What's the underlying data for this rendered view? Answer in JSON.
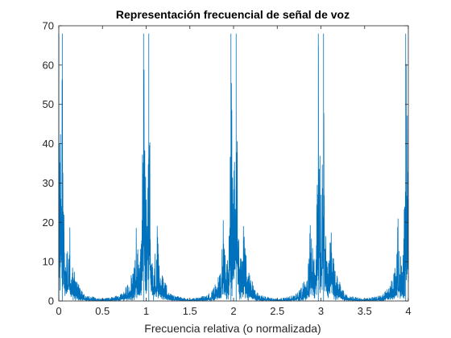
{
  "chart_data": {
    "type": "line",
    "title": "Representación frecuencial de señal de voz",
    "xlabel": "Frecuencia relativa (o normalizada)",
    "ylabel": "",
    "xlim": [
      0,
      4
    ],
    "ylim": [
      0,
      70
    ],
    "xticks": [
      0,
      0.5,
      1,
      1.5,
      2,
      2.5,
      3,
      3.5,
      4
    ],
    "xtick_labels": [
      "0",
      "0.5",
      "1",
      "1.5",
      "2",
      "2.5",
      "3",
      "3.5",
      "4"
    ],
    "yticks": [
      0,
      10,
      20,
      30,
      40,
      50,
      60,
      70
    ],
    "ytick_labels": [
      "0",
      "10",
      "20",
      "30",
      "40",
      "50",
      "60",
      "70"
    ],
    "grid": false,
    "series": [
      {
        "color": "#0072BD",
        "description_points": [
          [
            0.0,
            68
          ],
          [
            0.01,
            26
          ],
          [
            0.02,
            48
          ],
          [
            0.04,
            68
          ],
          [
            0.06,
            24
          ],
          [
            0.08,
            12
          ],
          [
            0.1,
            14
          ],
          [
            0.12,
            22
          ],
          [
            0.15,
            10
          ],
          [
            0.2,
            6
          ],
          [
            0.25,
            3
          ],
          [
            0.3,
            1.5
          ],
          [
            0.5,
            0.5
          ],
          [
            0.7,
            1.5
          ],
          [
            0.78,
            4
          ],
          [
            0.82,
            6
          ],
          [
            0.86,
            10
          ],
          [
            0.88,
            22
          ],
          [
            0.9,
            14
          ],
          [
            0.93,
            10
          ],
          [
            0.95,
            26
          ],
          [
            0.97,
            68
          ],
          [
            0.99,
            40
          ],
          [
            1.0,
            26
          ],
          [
            1.01,
            40
          ],
          [
            1.03,
            68
          ],
          [
            1.05,
            26
          ],
          [
            1.07,
            10
          ],
          [
            1.1,
            14
          ],
          [
            1.12,
            22
          ],
          [
            1.15,
            10
          ],
          [
            1.2,
            6
          ],
          [
            1.25,
            3
          ],
          [
            1.3,
            1.5
          ],
          [
            1.5,
            0.5
          ],
          [
            1.7,
            1.5
          ],
          [
            1.78,
            4
          ],
          [
            1.82,
            6
          ],
          [
            1.86,
            10
          ],
          [
            1.88,
            22
          ],
          [
            1.9,
            14
          ],
          [
            1.93,
            10
          ],
          [
            1.95,
            26
          ],
          [
            1.97,
            68
          ],
          [
            1.99,
            40
          ],
          [
            2.0,
            26
          ],
          [
            2.01,
            40
          ],
          [
            2.03,
            68
          ],
          [
            2.05,
            26
          ],
          [
            2.07,
            10
          ],
          [
            2.1,
            14
          ],
          [
            2.12,
            22
          ],
          [
            2.15,
            10
          ],
          [
            2.2,
            6
          ],
          [
            2.25,
            3
          ],
          [
            2.3,
            1.5
          ],
          [
            2.5,
            0.5
          ],
          [
            2.7,
            1.5
          ],
          [
            2.78,
            4
          ],
          [
            2.82,
            6
          ],
          [
            2.86,
            10
          ],
          [
            2.88,
            22
          ],
          [
            2.9,
            14
          ],
          [
            2.93,
            10
          ],
          [
            2.95,
            26
          ],
          [
            2.97,
            68
          ],
          [
            2.99,
            40
          ],
          [
            3.0,
            26
          ],
          [
            3.01,
            40
          ],
          [
            3.03,
            68
          ],
          [
            3.05,
            26
          ],
          [
            3.07,
            10
          ],
          [
            3.1,
            14
          ],
          [
            3.12,
            22
          ],
          [
            3.15,
            10
          ],
          [
            3.2,
            6
          ],
          [
            3.25,
            3
          ],
          [
            3.3,
            1.5
          ],
          [
            3.5,
            0.5
          ],
          [
            3.7,
            1.5
          ],
          [
            3.78,
            4
          ],
          [
            3.82,
            6
          ],
          [
            3.86,
            10
          ],
          [
            3.88,
            22
          ],
          [
            3.9,
            14
          ],
          [
            3.93,
            10
          ],
          [
            3.95,
            26
          ],
          [
            3.97,
            68
          ],
          [
            3.99,
            48
          ],
          [
            4.0,
            26
          ]
        ]
      }
    ]
  }
}
